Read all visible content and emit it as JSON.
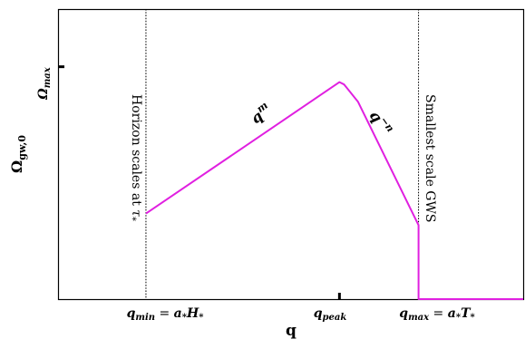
{
  "chart_data": {
    "type": "line",
    "title": "",
    "xlabel": "q",
    "ylabel": "Ω_gw,0",
    "xlim": [
      0,
      100
    ],
    "ylim": [
      0,
      100
    ],
    "grid": false,
    "series": [
      {
        "color": "#e020e0",
        "x": [
          18.9,
          60.5,
          61.5,
          64.5,
          77.5,
          77.5,
          100
        ],
        "y": [
          29.5,
          74.8,
          74.0,
          68.0,
          25.5,
          0,
          0
        ]
      }
    ],
    "x_ticks": [
      {
        "x": 18.9,
        "label": "q_min = a_* H_*"
      },
      {
        "x": 60.5,
        "label": "q_peak"
      },
      {
        "x": 77.5,
        "label": "q_max = a_* T_*"
      }
    ],
    "y_ticks": [
      {
        "y": 74.8,
        "label": "Ω_max"
      }
    ],
    "vlines": [
      {
        "x": 18.9,
        "style": "dotted",
        "label": "Horizon scales at τ_*"
      },
      {
        "x": 77.5,
        "style": "dotted",
        "label": "Smallest scale GWS"
      }
    ],
    "annotations": [
      {
        "text": "q^m"
      },
      {
        "text": "q^-n"
      }
    ]
  }
}
